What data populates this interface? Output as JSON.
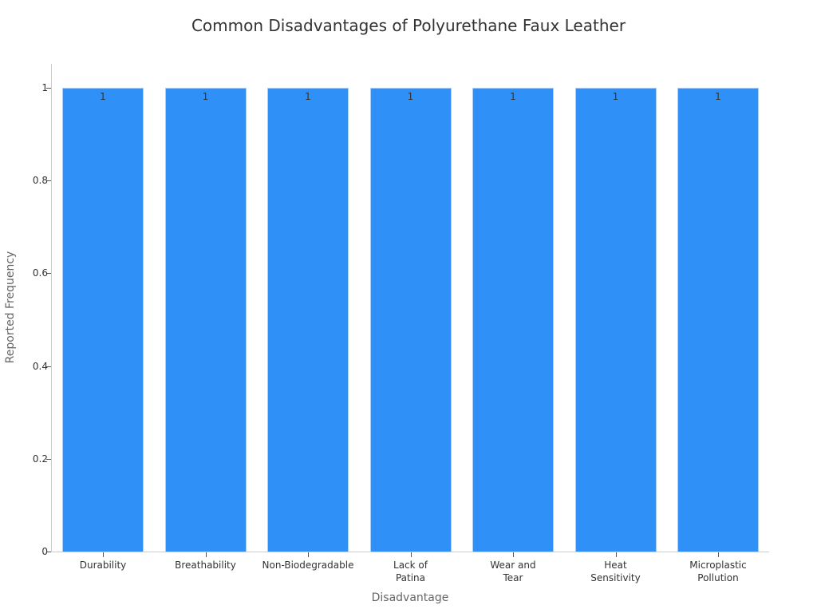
{
  "chart_data": {
    "type": "bar",
    "title": "Common Disadvantages of Polyurethane Faux Leather",
    "xlabel": "Disadvantage",
    "ylabel": "Reported Frequency",
    "categories": [
      "Durability",
      "Breathability",
      "Non-Biodegradable",
      "Lack of Patina",
      "Wear and Tear",
      "Heat Sensitivity",
      "Microplastic Pollution"
    ],
    "category_display": [
      "Durability",
      "Breathability",
      "Non-Biodegradable",
      "Lack of\nPatina",
      "Wear and\nTear",
      "Heat\nSensitivity",
      "Microplastic\nPollution"
    ],
    "values": [
      1,
      1,
      1,
      1,
      1,
      1,
      1
    ],
    "data_labels": [
      "1",
      "1",
      "1",
      "1",
      "1",
      "1",
      "1"
    ],
    "ylim": [
      0,
      1.05
    ],
    "yticks": [
      0,
      0.2,
      0.4,
      0.6,
      0.8,
      1
    ],
    "ytick_labels": [
      "0",
      "0.2",
      "0.4",
      "0.6",
      "0.8",
      "1"
    ],
    "grid": false,
    "legend": null,
    "colors": {
      "bar": "#2f91f7",
      "bar_edge": "#a8d0fb",
      "axis": "#cccccc"
    }
  }
}
